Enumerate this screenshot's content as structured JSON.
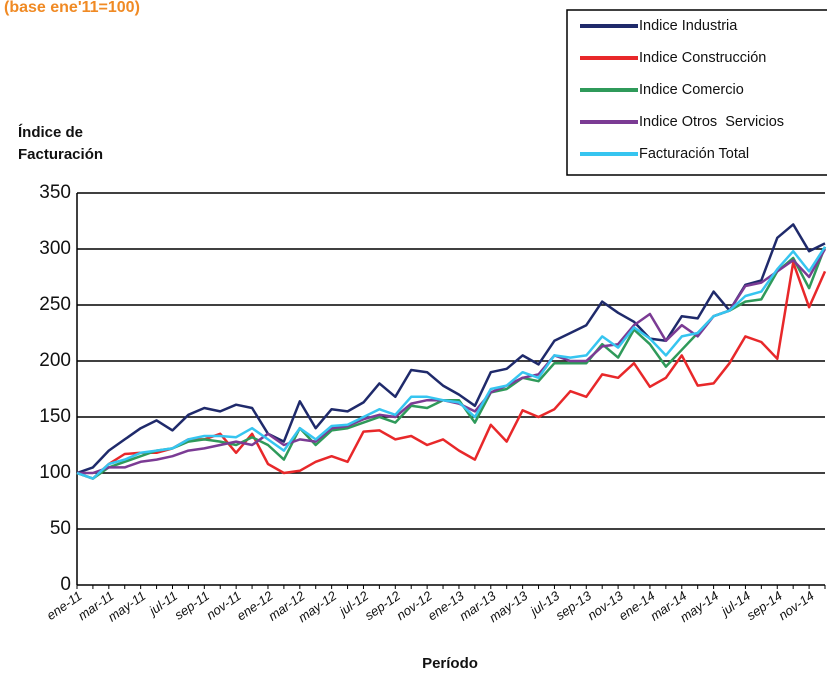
{
  "chart_data": {
    "type": "line",
    "subtitle": "(base ene'11=100)",
    "y_label_lines": [
      "Índice de",
      "Facturación"
    ],
    "x_label": "Período",
    "categories": [
      "ene-11",
      null,
      "mar-11",
      null,
      "may-11",
      null,
      "jul-11",
      null,
      "sep-11",
      null,
      "nov-11",
      null,
      "ene-12",
      null,
      "mar-12",
      null,
      "may-12",
      null,
      "jul-12",
      null,
      "sep-12",
      null,
      "nov-12",
      null,
      "ene-13",
      null,
      "mar-13",
      null,
      "may-13",
      null,
      "jul-13",
      null,
      "sep-13",
      null,
      "nov-13",
      null,
      "ene-14",
      null,
      "mar-14",
      null,
      "may-14",
      null,
      "jul-14",
      null,
      "sep-14",
      null,
      "nov-14",
      null
    ],
    "series": [
      {
        "name": "Indice Industria",
        "color": "#1f2a6b",
        "values": [
          100,
          105,
          120,
          130,
          140,
          147,
          138,
          152,
          158,
          155,
          161,
          158,
          135,
          128,
          164,
          140,
          157,
          155,
          163,
          180,
          168,
          192,
          190,
          178,
          170,
          160,
          190,
          193,
          205,
          197,
          218,
          225,
          232,
          253,
          243,
          235,
          220,
          218,
          240,
          238,
          262,
          245,
          268,
          272,
          310,
          322,
          298,
          305
        ]
      },
      {
        "name": "Indice Construcción",
        "color": "#e8282a",
        "values": [
          100,
          95,
          108,
          117,
          118,
          118,
          122,
          130,
          130,
          135,
          118,
          135,
          108,
          100,
          102,
          110,
          115,
          110,
          137,
          138,
          130,
          133,
          125,
          130,
          120,
          112,
          143,
          128,
          156,
          150,
          157,
          173,
          168,
          188,
          185,
          198,
          177,
          185,
          205,
          178,
          180,
          198,
          222,
          217,
          202,
          288,
          248,
          280
        ]
      },
      {
        "name": "Indice Comercio",
        "color": "#2f9a5a",
        "values": [
          100,
          95,
          105,
          110,
          115,
          120,
          122,
          128,
          130,
          128,
          125,
          132,
          125,
          112,
          140,
          125,
          138,
          140,
          145,
          150,
          145,
          160,
          158,
          165,
          165,
          145,
          172,
          175,
          185,
          182,
          198,
          198,
          198,
          215,
          203,
          228,
          215,
          195,
          210,
          225,
          240,
          245,
          253,
          255,
          280,
          292,
          265,
          302
        ]
      },
      {
        "name": "Indice Otros  Servicios",
        "color": "#7b3b94",
        "values": [
          100,
          100,
          105,
          105,
          110,
          112,
          115,
          120,
          122,
          125,
          128,
          125,
          135,
          125,
          130,
          128,
          140,
          142,
          148,
          152,
          150,
          162,
          165,
          165,
          162,
          155,
          172,
          178,
          185,
          188,
          205,
          200,
          200,
          213,
          215,
          232,
          242,
          218,
          232,
          222,
          240,
          245,
          267,
          270,
          280,
          290,
          275,
          300
        ]
      },
      {
        "name": "Facturación Total",
        "color": "#36c5f0",
        "values": [
          100,
          95,
          108,
          112,
          118,
          120,
          122,
          130,
          133,
          133,
          132,
          140,
          130,
          120,
          140,
          130,
          142,
          143,
          150,
          157,
          152,
          168,
          168,
          165,
          163,
          150,
          175,
          178,
          190,
          185,
          205,
          203,
          205,
          222,
          212,
          230,
          220,
          205,
          222,
          225,
          240,
          245,
          258,
          262,
          282,
          298,
          280,
          302
        ]
      }
    ],
    "ylim": [
      0,
      350
    ],
    "yticks": [
      0,
      50,
      100,
      150,
      200,
      250,
      300,
      350
    ],
    "grid": true,
    "legend": "top-right"
  }
}
